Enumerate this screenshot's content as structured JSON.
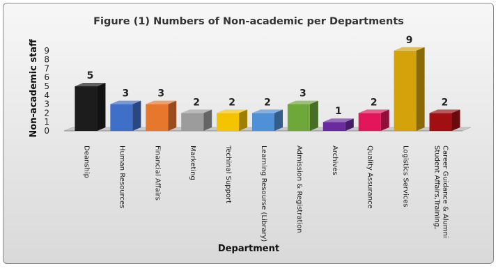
{
  "chart_data": {
    "type": "bar",
    "title": "Figure (1) Numbers of Non-academic per Departments",
    "xlabel": "Department",
    "ylabel": "Non-academic staff",
    "ylim": [
      0,
      9
    ],
    "yticks": [
      "0",
      "1",
      "2",
      "3",
      "4",
      "5",
      "6",
      "7",
      "8",
      "9"
    ],
    "grid": false,
    "legend": "none",
    "categories": [
      [
        "Deanship"
      ],
      [
        "Human Resources"
      ],
      [
        "Financial Affairs"
      ],
      [
        "Marketing"
      ],
      [
        "Techinal Support"
      ],
      [
        "Learning Resourse (Library)"
      ],
      [
        "Admission & Registration"
      ],
      [
        "Archives"
      ],
      [
        "Quality Assurance"
      ],
      [
        "Logistics Services"
      ],
      [
        "Student Affairs,Training,",
        "Career Guidance & Alumni"
      ]
    ],
    "values": [
      5,
      3,
      3,
      2,
      2,
      2,
      3,
      1,
      2,
      9,
      2
    ],
    "colors": [
      "#1c1c1c",
      "#3f6fc6",
      "#e8772e",
      "#9c9c9c",
      "#f5c400",
      "#4f90d6",
      "#6fa83a",
      "#6a2ba0",
      "#e2165a",
      "#d4a20a",
      "#a10f12"
    ]
  }
}
